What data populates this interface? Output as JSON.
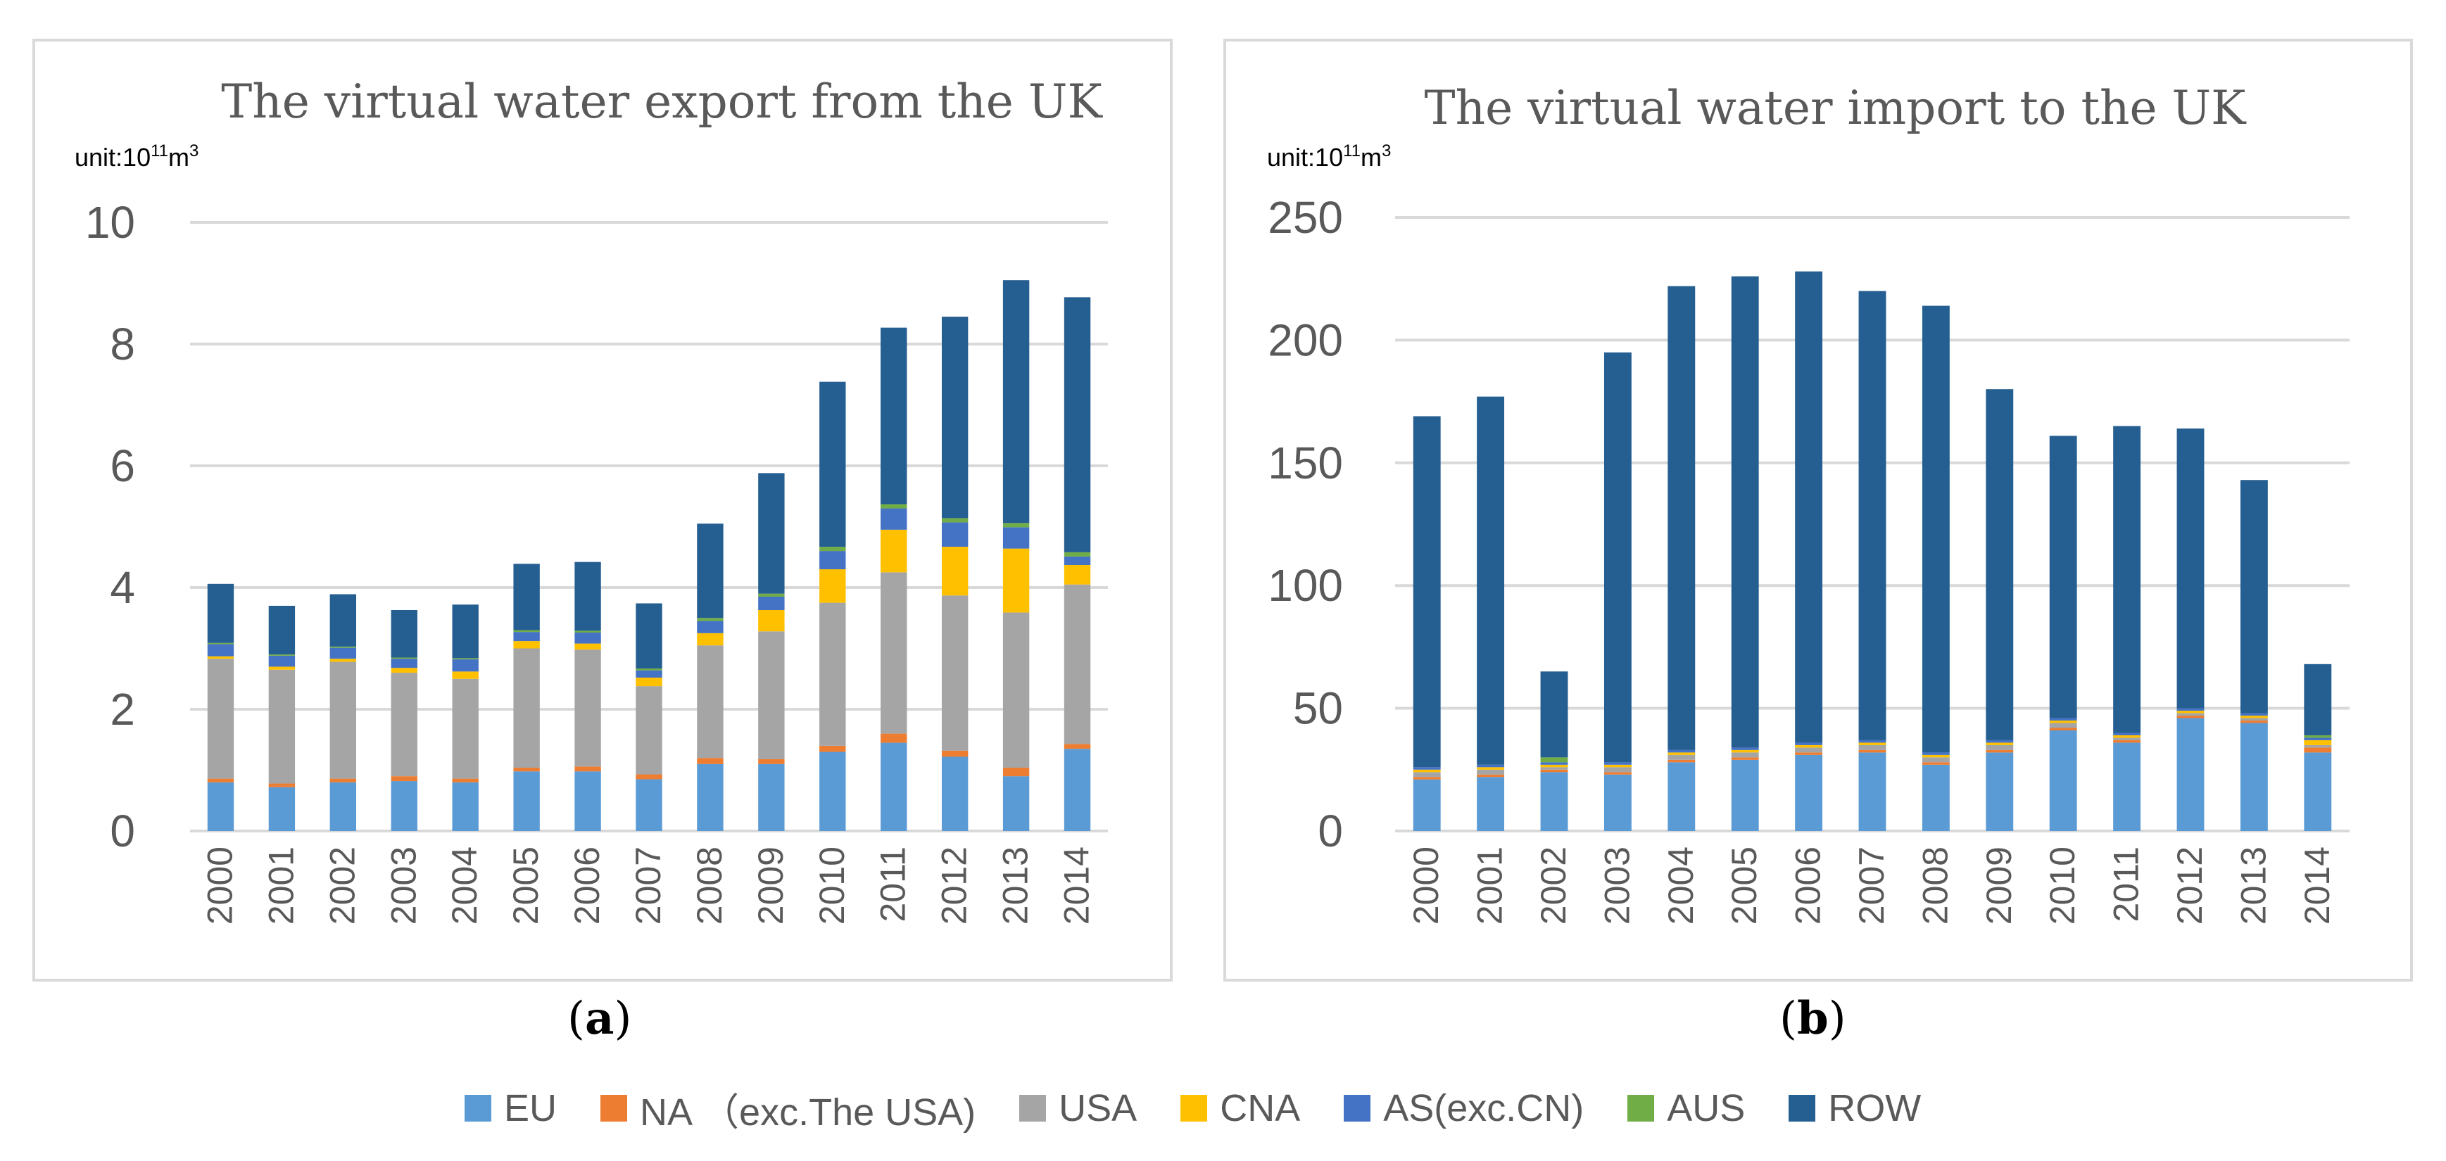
{
  "legend": [
    {
      "label": "EU",
      "color": "#5B9BD5"
    },
    {
      "label": "NA （exc.The USA)",
      "color": "#ED7D31"
    },
    {
      "label": "USA",
      "color": "#A5A5A5"
    },
    {
      "label": "CNA",
      "color": "#FFC000"
    },
    {
      "label": "AS(exc.CN)",
      "color": "#4472C4"
    },
    {
      "label": "AUS",
      "color": "#70AD47"
    },
    {
      "label": "ROW",
      "color": "#255E91"
    }
  ],
  "captions": {
    "a": "a",
    "b": "b"
  },
  "chart_data": [
    {
      "type": "bar",
      "stacked": true,
      "title": "The virtual water export from the UK",
      "unit_prefix": "unit:10",
      "unit_exp": "11",
      "unit_suffix": "m",
      "unit_exp2": "3",
      "categories": [
        "2000",
        "2001",
        "2002",
        "2003",
        "2004",
        "2005",
        "2006",
        "2007",
        "2008",
        "2009",
        "2010",
        "2011",
        "2012",
        "2013",
        "2014"
      ],
      "ylim": [
        0,
        10
      ],
      "yticks": [
        0,
        2,
        4,
        6,
        8,
        10
      ],
      "series": [
        {
          "name": "EU",
          "values": [
            0.8,
            0.72,
            0.8,
            0.82,
            0.8,
            0.98,
            0.98,
            0.85,
            1.1,
            1.1,
            1.3,
            1.45,
            1.22,
            0.9,
            1.35
          ]
        },
        {
          "name": "NA （exc.The USA)",
          "values": [
            0.06,
            0.06,
            0.06,
            0.08,
            0.06,
            0.06,
            0.08,
            0.08,
            0.1,
            0.08,
            0.1,
            0.15,
            0.1,
            0.14,
            0.08
          ]
        },
        {
          "name": "USA",
          "values": [
            1.97,
            1.87,
            1.92,
            1.7,
            1.64,
            1.96,
            1.92,
            1.45,
            1.85,
            2.1,
            2.35,
            2.65,
            2.55,
            2.55,
            2.62
          ]
        },
        {
          "name": "CNA",
          "values": [
            0.04,
            0.05,
            0.05,
            0.08,
            0.12,
            0.12,
            0.1,
            0.14,
            0.2,
            0.35,
            0.55,
            0.7,
            0.8,
            1.05,
            0.32
          ]
        },
        {
          "name": "AS(exc.CN)",
          "values": [
            0.2,
            0.18,
            0.18,
            0.15,
            0.2,
            0.15,
            0.18,
            0.12,
            0.2,
            0.22,
            0.3,
            0.35,
            0.4,
            0.35,
            0.14
          ]
        },
        {
          "name": "AUS",
          "values": [
            0.02,
            0.02,
            0.02,
            0.02,
            0.02,
            0.03,
            0.03,
            0.03,
            0.05,
            0.05,
            0.07,
            0.07,
            0.07,
            0.07,
            0.07
          ]
        },
        {
          "name": "ROW",
          "values": [
            0.97,
            0.8,
            0.86,
            0.78,
            0.88,
            1.09,
            1.13,
            1.07,
            1.55,
            1.98,
            2.71,
            2.9,
            3.31,
            3.99,
            4.19
          ]
        }
      ]
    },
    {
      "type": "bar",
      "stacked": true,
      "title": "The virtual water import to the UK",
      "unit_prefix": "unit:10",
      "unit_exp": "11",
      "unit_suffix": "m",
      "unit_exp2": "3",
      "categories": [
        "2000",
        "2001",
        "2002",
        "2003",
        "2004",
        "2005",
        "2006",
        "2007",
        "2008",
        "2009",
        "2010",
        "2011",
        "2012",
        "2013",
        "2014"
      ],
      "ylim": [
        0,
        250
      ],
      "yticks": [
        0,
        50,
        100,
        150,
        200,
        250
      ],
      "series": [
        {
          "name": "EU",
          "values": [
            21,
            22,
            24,
            23,
            28,
            29,
            31,
            32,
            27,
            32,
            41,
            36,
            46,
            44,
            32
          ]
        },
        {
          "name": "NA （exc.The USA)",
          "values": [
            1,
            1,
            1,
            1,
            1,
            1,
            1,
            1,
            1,
            1,
            1,
            1,
            1,
            1,
            2
          ]
        },
        {
          "name": "USA",
          "values": [
            2,
            2,
            1,
            2,
            2,
            2,
            2,
            2,
            2,
            2,
            2,
            1,
            1,
            1,
            1
          ]
        },
        {
          "name": "CNA",
          "values": [
            1,
            1,
            1,
            1,
            1,
            1,
            1,
            1,
            1,
            1,
            1,
            1,
            1,
            1,
            2
          ]
        },
        {
          "name": "AS(exc.CN)",
          "values": [
            1,
            1,
            1,
            1,
            1,
            1,
            1,
            1,
            1,
            1,
            1,
            1,
            1,
            1,
            1
          ]
        },
        {
          "name": "AUS",
          "values": [
            0,
            0,
            2,
            0,
            0,
            0,
            0,
            0,
            0,
            0,
            0,
            0,
            0,
            0,
            1
          ]
        },
        {
          "name": "ROW",
          "values": [
            143,
            150,
            35,
            167,
            189,
            192,
            192,
            183,
            182,
            143,
            115,
            125,
            114,
            95,
            29
          ]
        }
      ]
    }
  ]
}
